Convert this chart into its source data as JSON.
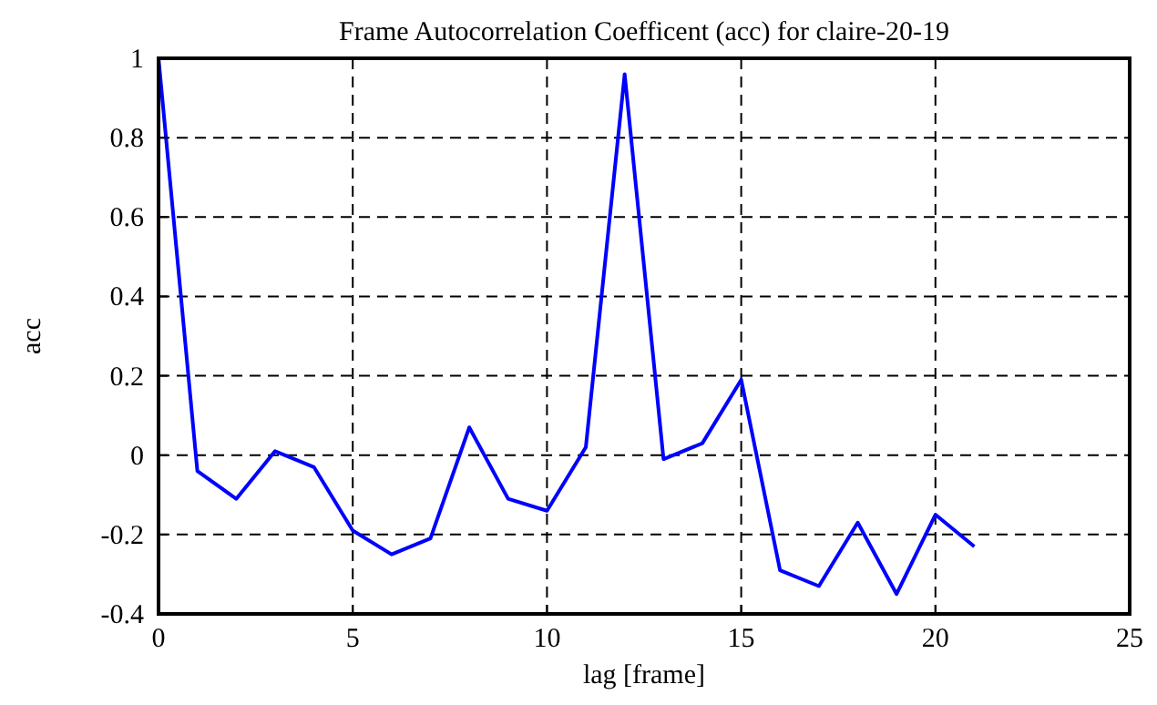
{
  "chart_data": {
    "type": "line",
    "title": "Frame Autocorrelation Coefficent (acc) for claire-20-19",
    "xlabel": "lag [frame]",
    "ylabel": "acc",
    "x": [
      0,
      1,
      2,
      3,
      4,
      5,
      6,
      7,
      8,
      9,
      10,
      11,
      12,
      13,
      14,
      15,
      16,
      17,
      18,
      19,
      20,
      21
    ],
    "series": [
      {
        "color": "#0000ff",
        "values": [
          1,
          -0.04,
          -0.11,
          0.01,
          -0.03,
          -0.19,
          -0.25,
          -0.21,
          0.07,
          -0.11,
          -0.14,
          0.02,
          0.96,
          -0.01,
          0.03,
          0.19,
          -0.29,
          -0.33,
          -0.17,
          -0.35,
          -0.15,
          -0.23
        ]
      }
    ],
    "xlim": [
      0,
      25
    ],
    "xticks": [
      0,
      5,
      10,
      15,
      20,
      25
    ],
    "ylim": [
      -0.4,
      1
    ],
    "yticks": [
      -0.4,
      -0.2,
      0,
      0.2,
      0.4,
      0.6,
      0.8,
      1
    ],
    "grid": true,
    "marker": "none",
    "line_style": "solid"
  }
}
